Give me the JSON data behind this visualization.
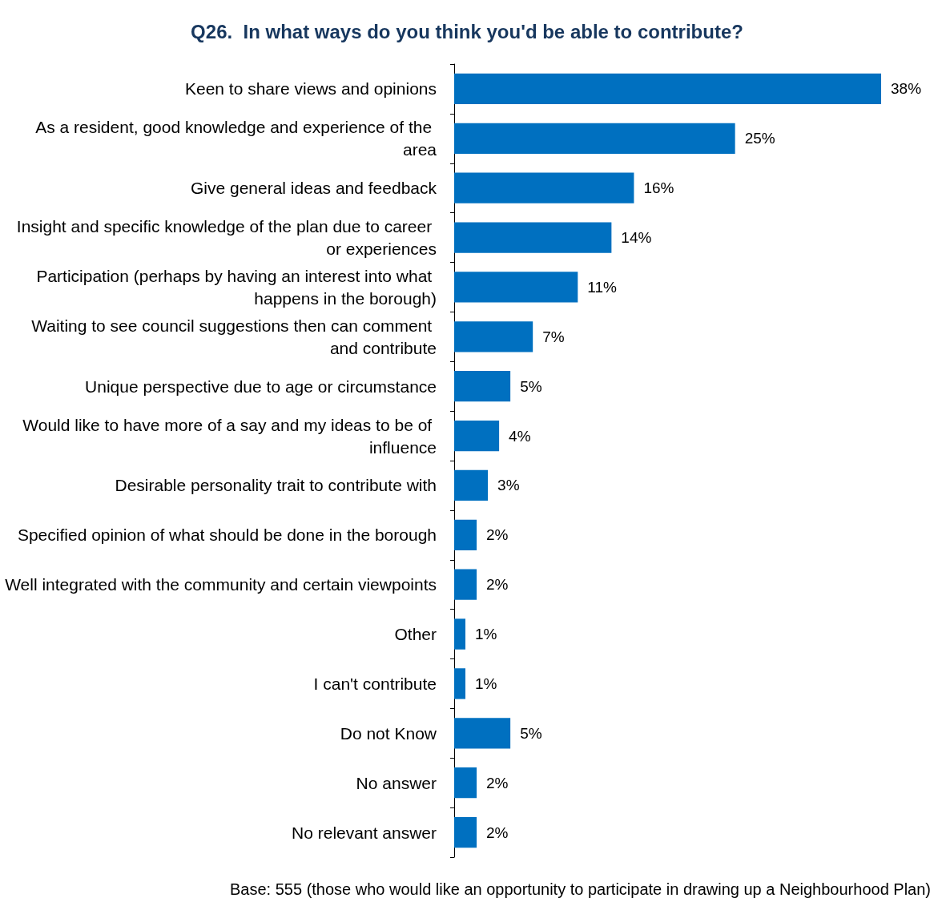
{
  "chart_data": {
    "type": "bar",
    "orientation": "horizontal",
    "title": "Q26.  In what ways do you think you'd be able to contribute?",
    "categories": [
      "Keen to share views and opinions",
      "As a resident, good knowledge and experience of the area",
      "Give general ideas and feedback",
      "Insight and specific knowledge of the plan due to career or experiences",
      "Participation (perhaps by having an interest into what happens in the borough)",
      "Waiting to see council suggestions then can comment and contribute",
      "Unique perspective due to age or circumstance",
      "Would like to have more of a say and my ideas to be of influence",
      "Desirable personality trait to contribute with",
      "Specified opinion of what should be done in the borough",
      "Well integrated with the community and certain viewpoints",
      "Other",
      "I can't contribute",
      "Do not Know",
      "No answer",
      "No relevant answer"
    ],
    "values": [
      38,
      25,
      16,
      14,
      11,
      7,
      5,
      4,
      3,
      2,
      2,
      1,
      1,
      5,
      2,
      2
    ],
    "value_labels": [
      "38%",
      "25%",
      "16%",
      "14%",
      "11%",
      "7%",
      "5%",
      "4%",
      "3%",
      "2%",
      "2%",
      "1%",
      "1%",
      "5%",
      "2%",
      "2%"
    ],
    "color": "#0070c0",
    "annotations": [
      "Base: 555 (those who would like an opportunity to participate in drawing up a Neighbourhood Plan)"
    ]
  }
}
